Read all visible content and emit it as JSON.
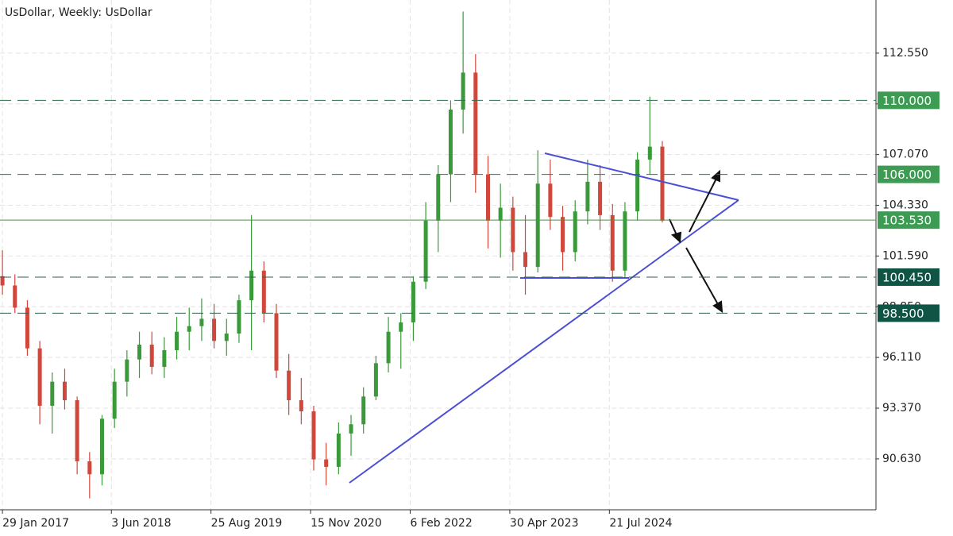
{
  "chart_data": {
    "type": "candlestick",
    "title": "UsDollar, Weekly:  UsDollar",
    "up_color": "#3a9a3a",
    "down_color": "#d0473b",
    "grid": true,
    "x": [
      "2017-01-29",
      "2017-03-26",
      "2017-05-21",
      "2017-07-16",
      "2017-09-10",
      "2017-11-05",
      "2017-12-31",
      "2018-02-25",
      "2018-04-22",
      "2018-06-17",
      "2018-08-12",
      "2018-10-07",
      "2018-12-02",
      "2019-01-27",
      "2019-03-24",
      "2019-05-19",
      "2019-07-14",
      "2019-09-08",
      "2019-11-03",
      "2019-12-29",
      "2020-02-23",
      "2020-04-19",
      "2020-06-14",
      "2020-08-09",
      "2020-10-04",
      "2020-11-29",
      "2021-01-24",
      "2021-03-21",
      "2021-05-16",
      "2021-07-11",
      "2021-09-05",
      "2021-10-31",
      "2021-12-26",
      "2022-02-20",
      "2022-04-17",
      "2022-06-12",
      "2022-08-07",
      "2022-10-02",
      "2022-11-27",
      "2023-01-22",
      "2023-03-19",
      "2023-05-14",
      "2023-07-09",
      "2023-09-03",
      "2023-10-29",
      "2023-12-24",
      "2024-02-18",
      "2024-04-14",
      "2024-06-09",
      "2024-08-04",
      "2024-09-29",
      "2024-11-24",
      "2025-01-19",
      "2025-03-16"
    ],
    "open": [
      100.5,
      100.0,
      98.8,
      96.6,
      93.5,
      94.8,
      93.8,
      90.5,
      89.8,
      92.8,
      94.8,
      96.0,
      96.8,
      95.6,
      96.5,
      97.5,
      97.8,
      98.2,
      97.0,
      97.4,
      99.2,
      100.8,
      98.5,
      95.4,
      93.8,
      93.2,
      90.6,
      90.2,
      92.0,
      92.5,
      94.0,
      95.8,
      97.5,
      98.0,
      100.2,
      103.5,
      106.0,
      109.5,
      111.5,
      106.0,
      103.5,
      104.2,
      101.8,
      101.0,
      105.5,
      103.7,
      101.8,
      104.0,
      105.6,
      103.8,
      100.8,
      104.0,
      106.8,
      107.5
    ],
    "high": [
      101.9,
      100.6,
      99.2,
      97.0,
      95.3,
      95.5,
      94.0,
      91.0,
      93.0,
      95.5,
      96.5,
      97.5,
      97.5,
      97.2,
      98.3,
      98.8,
      99.3,
      99.0,
      98.2,
      99.5,
      103.8,
      101.3,
      99.0,
      96.3,
      95.0,
      93.5,
      91.5,
      92.6,
      93.0,
      94.5,
      96.2,
      98.3,
      98.5,
      100.5,
      104.5,
      106.5,
      110.0,
      114.8,
      112.5,
      107.0,
      105.5,
      104.8,
      103.8,
      107.3,
      106.8,
      104.3,
      104.6,
      106.8,
      106.5,
      104.4,
      104.5,
      107.2,
      110.2,
      107.8
    ],
    "low": [
      99.5,
      98.5,
      96.2,
      92.5,
      92.0,
      93.3,
      89.8,
      88.5,
      89.2,
      92.3,
      94.0,
      95.0,
      95.2,
      95.0,
      96.0,
      96.5,
      97.0,
      96.6,
      96.2,
      96.9,
      96.5,
      98.0,
      95.0,
      93.0,
      92.5,
      90.0,
      89.2,
      89.8,
      90.8,
      92.0,
      93.8,
      95.3,
      95.5,
      97.0,
      99.8,
      101.8,
      104.5,
      108.2,
      105.0,
      102.0,
      101.5,
      100.8,
      99.5,
      100.7,
      103.0,
      100.8,
      101.3,
      103.3,
      103.0,
      100.2,
      100.4,
      103.5,
      106.0,
      103.4
    ],
    "close": [
      100.0,
      98.8,
      96.6,
      93.5,
      94.8,
      93.8,
      90.5,
      89.8,
      92.8,
      94.8,
      96.0,
      96.8,
      95.6,
      96.5,
      97.5,
      97.8,
      98.2,
      97.0,
      97.4,
      99.2,
      100.8,
      98.5,
      95.4,
      93.8,
      93.2,
      90.6,
      90.2,
      92.0,
      92.5,
      94.0,
      95.8,
      97.5,
      98.0,
      100.2,
      103.5,
      106.0,
      109.5,
      111.5,
      106.0,
      103.5,
      104.2,
      101.8,
      101.0,
      105.5,
      103.7,
      101.8,
      104.0,
      105.6,
      103.8,
      100.8,
      104.0,
      106.8,
      107.5,
      103.5
    ],
    "xlim": [
      "2017-01-18",
      "2027-11-02"
    ],
    "xticks": [
      {
        "value": "2017-01-29",
        "label": "29 Jan 2017"
      },
      {
        "value": "2018-06-03",
        "label": "3 Jun 2018"
      },
      {
        "value": "2019-08-25",
        "label": "25 Aug 2019"
      },
      {
        "value": "2020-11-15",
        "label": "15 Nov 2020"
      },
      {
        "value": "2022-02-06",
        "label": "6 Feb 2022"
      },
      {
        "value": "2023-04-30",
        "label": "30 Apr 2023"
      },
      {
        "value": "2024-07-21",
        "label": "21 Jul 2024"
      }
    ],
    "ylim": [
      87.88,
      115.42
    ],
    "yticks": [
      {
        "value": 90.63,
        "label": "90.630"
      },
      {
        "value": 93.37,
        "label": "93.370"
      },
      {
        "value": 96.11,
        "label": "96.110"
      },
      {
        "value": 98.85,
        "label": "98.850"
      },
      {
        "value": 101.59,
        "label": "101.590"
      },
      {
        "value": 104.33,
        "label": "104.330"
      },
      {
        "value": 107.07,
        "label": "107.070"
      },
      {
        "value": 109.81,
        "label": "109.810"
      },
      {
        "value": 112.55,
        "label": "112.550"
      }
    ],
    "levels": [
      {
        "value": 110,
        "label": "110.000",
        "line": "dashed",
        "color": "#2f6f50",
        "label_bg": "#3d9b53"
      },
      {
        "value": 106,
        "label": "106.000",
        "line": "dashed",
        "color": "#2f6f50",
        "label_bg": "#3d9b53"
      },
      {
        "value": 103.53,
        "label": "103.530",
        "line": "solid",
        "color": "#3a9a3a",
        "label_bg": "#3d9b53"
      },
      {
        "value": 100.45,
        "label": "100.450",
        "line": "dashed",
        "color": "#2f5f50",
        "label_bg": "#0f5444"
      },
      {
        "value": 98.5,
        "label": "98.500",
        "line": "dashed",
        "color": "#2f5f50",
        "label_bg": "#0f5444"
      }
    ]
  }
}
